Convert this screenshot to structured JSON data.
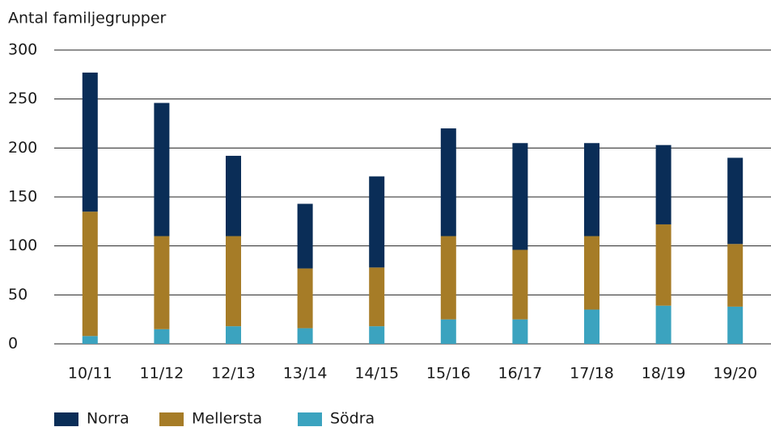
{
  "chart_data": {
    "type": "stacked_bar",
    "y_axis_label": "Antal familjegrupper",
    "categories": [
      "10/11",
      "11/12",
      "12/13",
      "13/14",
      "14/15",
      "15/16",
      "16/17",
      "17/18",
      "18/19",
      "19/20"
    ],
    "series": [
      {
        "name": "Norra",
        "color": "#0a2d57",
        "values": [
          142,
          136,
          82,
          66,
          93,
          110,
          109,
          95,
          81,
          88
        ]
      },
      {
        "name": "Mellersta",
        "color": "#a67c27",
        "values": [
          127,
          95,
          92,
          61,
          60,
          85,
          71,
          75,
          83,
          64
        ]
      },
      {
        "name": "Södra",
        "color": "#3ba3bf",
        "values": [
          8,
          15,
          18,
          16,
          18,
          25,
          25,
          35,
          39,
          38
        ]
      }
    ],
    "ylim": [
      0,
      300
    ],
    "yticks": [
      0,
      50,
      100,
      150,
      200,
      250,
      300
    ],
    "grid": true,
    "legend": "bottom-left"
  }
}
